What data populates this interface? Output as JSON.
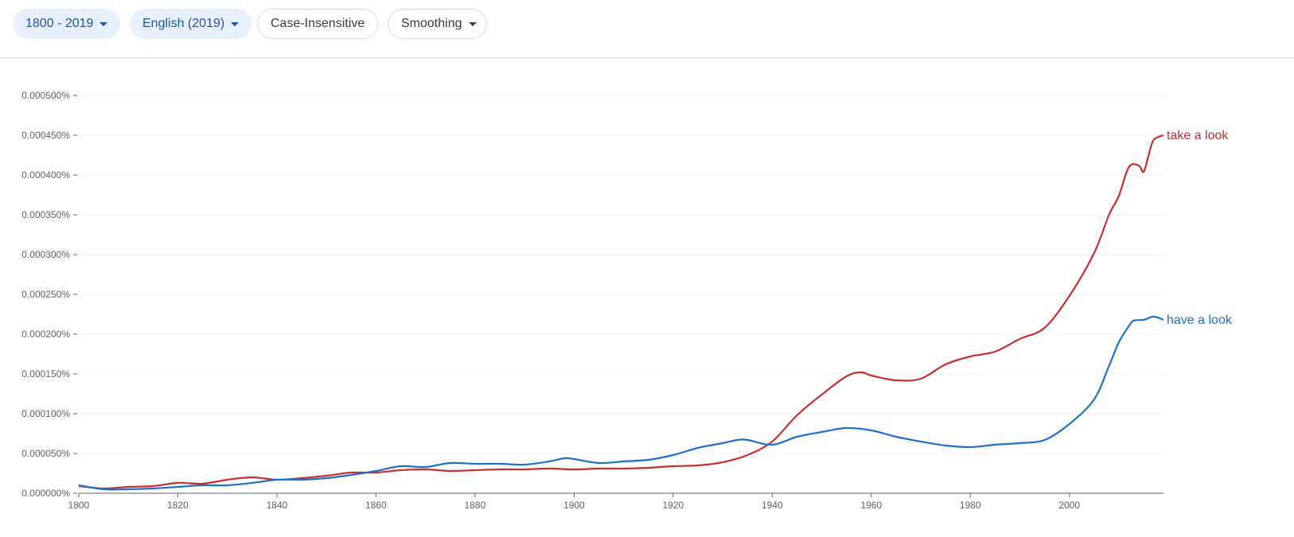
{
  "toolbar": {
    "year_range": "1800 - 2019",
    "corpus": "English (2019)",
    "case": "Case-Insensitive",
    "smoothing": "Smoothing"
  },
  "chart_data": {
    "type": "line",
    "xlim": [
      1800,
      2019
    ],
    "ylim": [
      0,
      0.0005
    ],
    "grid": true,
    "legend": "inline labels at line ends (right)",
    "x_ticks": [
      "1800",
      "1820",
      "1840",
      "1860",
      "1880",
      "1900",
      "1920",
      "1940",
      "1960",
      "1980",
      "2000"
    ],
    "y_ticks": [
      "0.000000%",
      "0.000050%",
      "0.000100%",
      "0.000150%",
      "0.000200%",
      "0.000250%",
      "0.000300%",
      "0.000350%",
      "0.000400%",
      "0.000450%",
      "0.000500%"
    ],
    "series": [
      {
        "name": "take a look",
        "color": "#c5302e",
        "x": [
          1800,
          1805,
          1810,
          1815,
          1820,
          1825,
          1830,
          1835,
          1840,
          1845,
          1850,
          1855,
          1860,
          1865,
          1870,
          1875,
          1880,
          1885,
          1890,
          1895,
          1900,
          1905,
          1910,
          1915,
          1920,
          1925,
          1930,
          1935,
          1940,
          1945,
          1950,
          1955,
          1958,
          1960,
          1965,
          1970,
          1975,
          1980,
          1985,
          1990,
          1995,
          2000,
          2005,
          2008,
          2010,
          2012,
          2014,
          2015,
          2016,
          2017,
          2019
        ],
        "y": [
          9e-06,
          6e-06,
          8e-06,
          9e-06,
          1.3e-05,
          1.2e-05,
          1.7e-05,
          2e-05,
          1.7e-05,
          1.9e-05,
          2.2e-05,
          2.6e-05,
          2.6e-05,
          2.9e-05,
          3e-05,
          2.8e-05,
          2.9e-05,
          3e-05,
          3e-05,
          3.1e-05,
          3e-05,
          3.1e-05,
          3.1e-05,
          3.2e-05,
          3.4e-05,
          3.5e-05,
          3.9e-05,
          4.8e-05,
          6.5e-05,
          9.8e-05,
          0.000124,
          0.000147,
          0.000152,
          0.000148,
          0.000142,
          0.000144,
          0.000162,
          0.000172,
          0.000178,
          0.000194,
          0.000208,
          0.000248,
          0.000302,
          0.00035,
          0.000374,
          0.00041,
          0.000412,
          0.000404,
          0.000425,
          0.000444,
          0.00045
        ]
      },
      {
        "name": "have a look",
        "color": "#1f6fcc",
        "x": [
          1800,
          1805,
          1810,
          1815,
          1820,
          1825,
          1830,
          1835,
          1840,
          1845,
          1850,
          1855,
          1860,
          1865,
          1870,
          1875,
          1880,
          1885,
          1890,
          1895,
          1898,
          1900,
          1905,
          1910,
          1915,
          1920,
          1925,
          1930,
          1933,
          1935,
          1940,
          1945,
          1950,
          1955,
          1960,
          1965,
          1970,
          1975,
          1980,
          1985,
          1990,
          1995,
          2000,
          2005,
          2008,
          2010,
          2012,
          2013,
          2015,
          2017,
          2019
        ],
        "y": [
          1e-05,
          5e-06,
          5e-06,
          6e-06,
          8e-06,
          1e-05,
          1e-05,
          1.3e-05,
          1.7e-05,
          1.7e-05,
          1.9e-05,
          2.3e-05,
          2.8e-05,
          3.4e-05,
          3.3e-05,
          3.8e-05,
          3.7e-05,
          3.7e-05,
          3.6e-05,
          4e-05,
          4.4e-05,
          4.3e-05,
          3.8e-05,
          4e-05,
          4.2e-05,
          4.8e-05,
          5.7e-05,
          6.3e-05,
          6.7e-05,
          6.7e-05,
          6.1e-05,
          7.1e-05,
          7.7e-05,
          8.2e-05,
          7.9e-05,
          7.1e-05,
          6.5e-05,
          6e-05,
          5.8e-05,
          6.1e-05,
          6.3e-05,
          6.7e-05,
          8.7e-05,
          0.000118,
          0.00016,
          0.00019,
          0.00021,
          0.000217,
          0.000218,
          0.000222,
          0.000218
        ]
      }
    ]
  }
}
